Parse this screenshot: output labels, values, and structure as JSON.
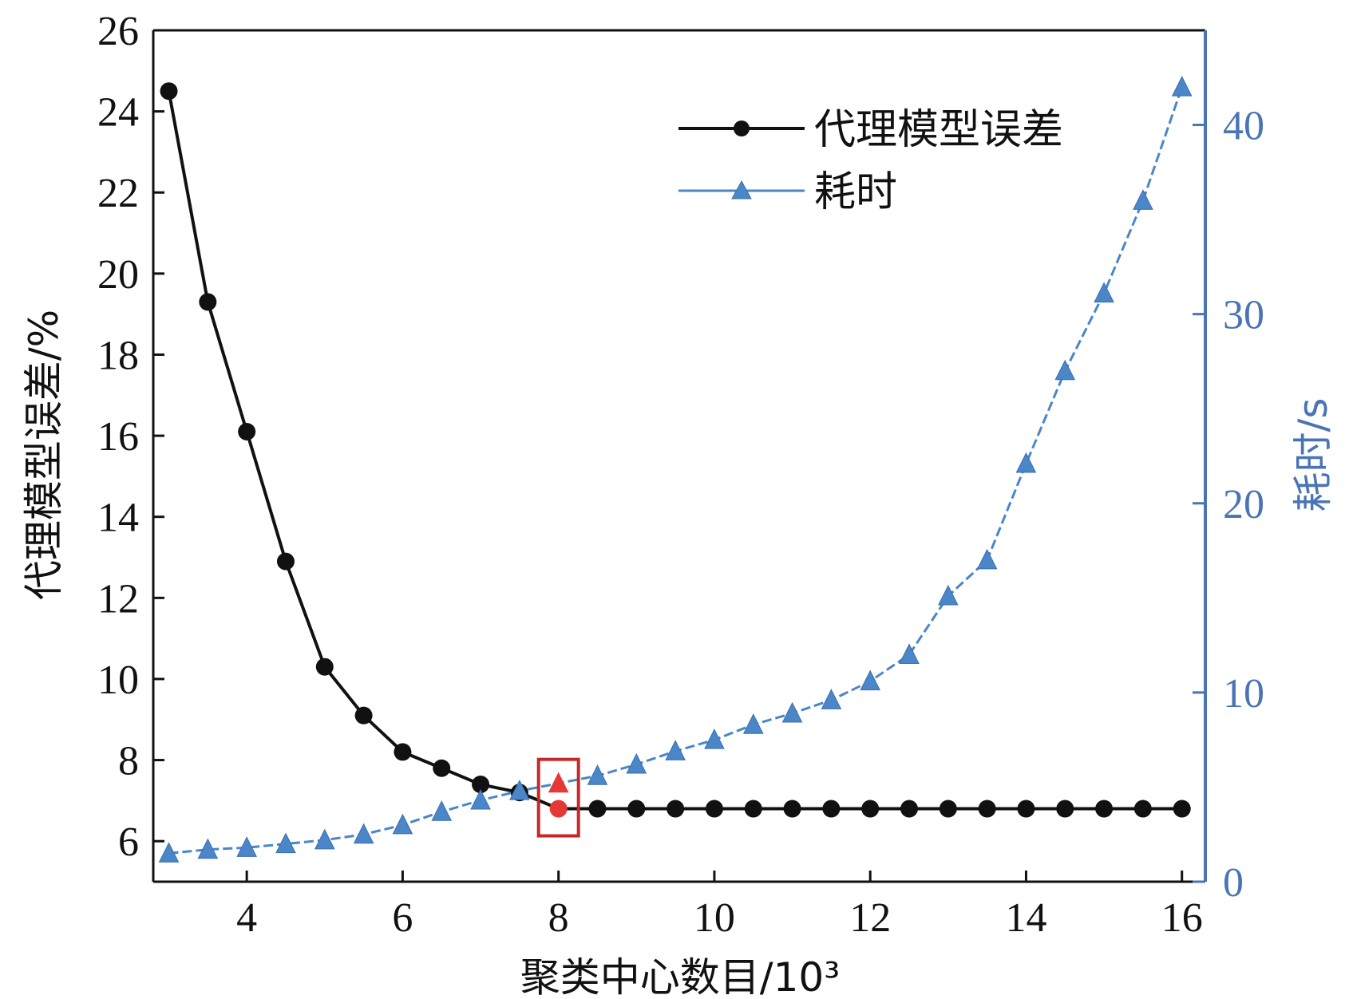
{
  "chart_data": {
    "type": "line",
    "xlabel": "聚类中心数目/10³",
    "ylabel_left": "代理模型误差/%",
    "ylabel_right": "耗时/s",
    "xlim": [
      2.8,
      16.3
    ],
    "xticks": [
      4,
      6,
      8,
      10,
      12,
      14,
      16
    ],
    "ylim_left": [
      5,
      26
    ],
    "yticks_left": [
      6,
      8,
      10,
      12,
      14,
      16,
      18,
      20,
      22,
      24,
      26
    ],
    "ylim_right": [
      0,
      45
    ],
    "yticks_right": [
      0,
      10,
      20,
      30,
      40
    ],
    "legend_position": "top-right",
    "grid": false,
    "series": [
      {
        "name": "代理模型误差",
        "axis": "left",
        "color": "#111111",
        "marker": "circle",
        "x": [
          3,
          3.5,
          4,
          4.5,
          5,
          5.5,
          6,
          6.5,
          7,
          7.5,
          8,
          8.5,
          9,
          9.5,
          10,
          10.5,
          11,
          11.5,
          12,
          12.5,
          13,
          13.5,
          14,
          14.5,
          15,
          15.5,
          16
        ],
        "y": [
          24.5,
          19.3,
          16.1,
          12.9,
          10.3,
          9.1,
          8.2,
          7.8,
          7.4,
          7.2,
          6.8,
          6.8,
          6.8,
          6.8,
          6.8,
          6.8,
          6.8,
          6.8,
          6.8,
          6.8,
          6.8,
          6.8,
          6.8,
          6.8,
          6.8,
          6.8,
          6.8
        ]
      },
      {
        "name": "耗时",
        "axis": "right",
        "color": "#4a86c8",
        "marker": "triangle",
        "x": [
          3,
          3.5,
          4,
          4.5,
          5,
          5.5,
          6,
          6.5,
          7,
          7.5,
          8,
          8.5,
          9,
          9.5,
          10,
          10.5,
          11,
          11.5,
          12,
          12.5,
          13,
          13.5,
          14,
          14.5,
          15,
          15.5,
          16
        ],
        "y": [
          1.5,
          1.7,
          1.8,
          2.0,
          2.2,
          2.5,
          3.0,
          3.7,
          4.3,
          4.8,
          5.2,
          5.6,
          6.2,
          6.9,
          7.5,
          8.3,
          8.9,
          9.6,
          10.6,
          12.0,
          15.1,
          17.0,
          22.1,
          27.0,
          31.1,
          36.0,
          42.0
        ]
      }
    ],
    "highlight": {
      "x": 8,
      "color": "#e53935",
      "box_color": "#c62828",
      "error_value": 6.8,
      "time_value": 5.2
    }
  }
}
